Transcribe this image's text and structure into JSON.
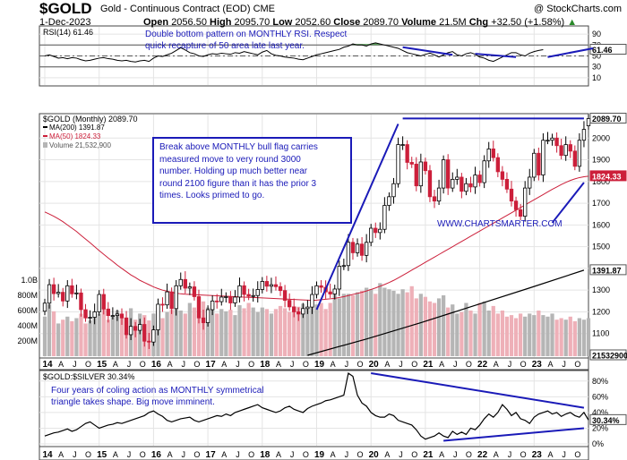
{
  "header": {
    "symbol": "$GOLD",
    "description": "Gold - Continuous Contract (EOD)",
    "exchange": "CME",
    "credit": "@ StockCharts.com",
    "date": "1-Dec-2023",
    "ohlc": {
      "open_label": "Open",
      "open": "2056.50",
      "high_label": "High",
      "high": "2095.70",
      "low_label": "Low",
      "low": "2052.60",
      "close_label": "Close",
      "close": "2089.70",
      "volume_label": "Volume",
      "volume": "21.5M",
      "chg_label": "Chg",
      "chg": "+32.50 (+1.58%)",
      "chg_arrow": "▲"
    }
  },
  "annotations": {
    "rsi_note": [
      "Double bottom pattern on MONTHLY RSI. Respect",
      "quick recapture of 50 area late last year."
    ],
    "price_note": [
      "Break above MONTHLY bull flag carries",
      "measured move to very round 3000",
      "number. Holding up much better near",
      "round 2100 figure than it has the prior 3",
      "times. Looks primed to go."
    ],
    "ratio_note": [
      "Four years of coling action as MONTHLY symmetrical",
      "triangle takes shape. Big move imminent."
    ],
    "watermark": "WWW.CHARTSMARTER.COM"
  },
  "colors": {
    "candle_up": "#000000",
    "candle_down": "#cc1f3a",
    "volume_up": "#b5b5b5",
    "volume_down": "#eeb0b8",
    "ma200": "#000000",
    "ma50": "#cc1f3a",
    "trendline": "#1a1ab8",
    "rsi_overbought_fill": "#3d8f3d",
    "grid": "#e4e4e4"
  },
  "chart_data": [
    {
      "type": "line",
      "panel": "rsi",
      "title": "RSI(14) 61.46",
      "series": [
        {
          "name": "RSI(14)",
          "start": "2014-01",
          "interval": "month",
          "values": [
            50,
            52,
            49,
            46,
            47,
            45,
            47,
            46,
            43,
            41,
            42,
            44,
            46,
            47,
            45,
            44,
            42,
            41,
            42,
            40,
            39,
            41,
            42,
            40,
            46,
            50,
            49,
            52,
            55,
            60,
            65,
            61,
            56,
            54,
            50,
            49,
            52,
            54,
            53,
            55,
            54,
            53,
            56,
            55,
            58,
            56,
            54,
            52,
            57,
            60,
            54,
            51,
            50,
            48,
            47,
            46,
            44,
            43,
            46,
            49,
            52,
            54,
            56,
            58,
            60,
            62,
            66,
            68,
            72,
            70,
            70,
            68,
            72,
            74,
            72,
            70,
            68,
            66,
            64,
            60,
            56,
            54,
            52,
            50,
            53,
            55,
            52,
            48,
            52,
            56,
            58,
            52,
            50,
            54,
            56,
            53,
            48,
            46,
            42,
            40,
            44,
            48,
            52,
            56,
            56,
            52,
            50,
            55,
            58,
            60,
            61.46
          ]
        }
      ],
      "ylim": [
        0,
        100
      ],
      "ticks": [
        90,
        70,
        50,
        30,
        10
      ],
      "reference_lines": [
        70,
        50,
        30
      ],
      "last_label": "61.46"
    },
    {
      "type": "candlestick",
      "panel": "price",
      "title": "$GOLD (Monthly) 2089.70",
      "legend": [
        "MA(200) 1391.87",
        "MA(50) 1824.33",
        "Volume 21,532,900"
      ],
      "start": "2014-01",
      "interval": "month",
      "close": [
        1240,
        1325,
        1284,
        1290,
        1250,
        1320,
        1283,
        1287,
        1210,
        1172,
        1175,
        1200,
        1280,
        1213,
        1183,
        1183,
        1190,
        1172,
        1095,
        1133,
        1115,
        1142,
        1065,
        1061,
        1117,
        1235,
        1232,
        1292,
        1215,
        1320,
        1349,
        1309,
        1315,
        1270,
        1172,
        1150,
        1210,
        1250,
        1247,
        1268,
        1270,
        1241,
        1268,
        1320,
        1280,
        1272,
        1275,
        1303,
        1340,
        1318,
        1325,
        1316,
        1298,
        1253,
        1223,
        1200,
        1190,
        1215,
        1222,
        1280,
        1320,
        1313,
        1292,
        1282,
        1305,
        1410,
        1413,
        1520,
        1472,
        1512,
        1460,
        1520,
        1585,
        1565,
        1580,
        1690,
        1730,
        1790,
        1970,
        1970,
        1888,
        1880,
        1780,
        1890,
        1850,
        1730,
        1710,
        1770,
        1900,
        1770,
        1810,
        1820,
        1755,
        1790,
        1775,
        1830,
        1795,
        1895,
        1950,
        1910,
        1845,
        1810,
        1765,
        1710,
        1670,
        1640,
        1770,
        1820,
        1930,
        1830,
        1990,
        1990,
        2000,
        1965,
        1920,
        1970,
        1940,
        1870,
        1990,
        2040,
        2089.7
      ],
      "open": [
        1203,
        1240,
        1325,
        1284,
        1290,
        1250,
        1320,
        1283,
        1287,
        1210,
        1172,
        1175,
        1200,
        1280,
        1213,
        1183,
        1183,
        1190,
        1172,
        1095,
        1133,
        1115,
        1142,
        1065,
        1061,
        1117,
        1235,
        1232,
        1292,
        1215,
        1320,
        1349,
        1309,
        1315,
        1270,
        1172,
        1150,
        1210,
        1250,
        1247,
        1268,
        1270,
        1241,
        1268,
        1320,
        1280,
        1272,
        1275,
        1303,
        1340,
        1318,
        1325,
        1316,
        1298,
        1253,
        1223,
        1200,
        1190,
        1215,
        1222,
        1280,
        1320,
        1313,
        1292,
        1282,
        1305,
        1410,
        1413,
        1520,
        1472,
        1512,
        1460,
        1520,
        1585,
        1565,
        1580,
        1690,
        1730,
        1790,
        1970,
        1970,
        1888,
        1880,
        1780,
        1890,
        1850,
        1730,
        1710,
        1770,
        1900,
        1770,
        1810,
        1820,
        1755,
        1790,
        1775,
        1830,
        1795,
        1895,
        1950,
        1910,
        1845,
        1810,
        1765,
        1710,
        1670,
        1640,
        1770,
        1820,
        1930,
        1830,
        1990,
        1990,
        2000,
        1965,
        1920,
        1970,
        1940,
        1870,
        1990,
        2056.5
      ],
      "ma50": [
        1660,
        1650,
        1640,
        1628,
        1615,
        1600,
        1585,
        1570,
        1552,
        1535,
        1518,
        1500,
        1482,
        1465,
        1448,
        1432,
        1415,
        1400,
        1385,
        1370,
        1358,
        1345,
        1335,
        1325,
        1315,
        1307,
        1300,
        1295,
        1290,
        1286,
        1283,
        1281,
        1280,
        1279,
        1278,
        1277,
        1276,
        1275,
        1274,
        1273,
        1272,
        1271,
        1270,
        1269,
        1268,
        1267,
        1266,
        1265,
        1264,
        1263,
        1262,
        1261,
        1260,
        1259,
        1258,
        1257,
        1256,
        1255,
        1254,
        1253,
        1254,
        1256,
        1258,
        1260,
        1262,
        1266,
        1270,
        1275,
        1280,
        1285,
        1290,
        1296,
        1303,
        1310,
        1318,
        1326,
        1335,
        1345,
        1356,
        1368,
        1380,
        1392,
        1404,
        1416,
        1428,
        1440,
        1452,
        1464,
        1476,
        1488,
        1500,
        1512,
        1524,
        1536,
        1548,
        1560,
        1572,
        1584,
        1596,
        1608,
        1620,
        1632,
        1644,
        1656,
        1668,
        1680,
        1692,
        1704,
        1716,
        1728,
        1740,
        1752,
        1764,
        1775,
        1786,
        1796,
        1805,
        1812,
        1818,
        1822,
        1824.33
      ],
      "ma200": [
        {
          "x": "2018-11",
          "y": 1000
        },
        {
          "x": "2019-12",
          "y": 1075
        },
        {
          "x": "2020-12",
          "y": 1150
        },
        {
          "x": "2021-12",
          "y": 1230
        },
        {
          "x": "2022-12",
          "y": 1310
        },
        {
          "x": "2023-12",
          "y": 1391.87
        }
      ],
      "volume_millions": [
        520,
        680,
        590,
        430,
        480,
        520,
        460,
        500,
        560,
        430,
        470,
        520,
        560,
        640,
        480,
        520,
        600,
        500,
        460,
        630,
        480,
        560,
        540,
        470,
        560,
        640,
        500,
        580,
        610,
        620,
        600,
        560,
        700,
        640,
        560,
        720,
        640,
        660,
        560,
        620,
        590,
        610,
        540,
        670,
        630,
        700,
        640,
        580,
        640,
        620,
        560,
        620,
        660,
        630,
        580,
        600,
        650,
        690,
        620,
        640,
        680,
        700,
        620,
        700,
        880,
        760,
        820,
        820,
        800,
        840,
        860,
        900,
        880,
        820,
        960,
        900,
        880,
        860,
        820,
        880,
        840,
        920,
        760,
        820,
        780,
        720,
        700,
        760,
        800,
        640,
        680,
        560,
        580,
        700,
        600,
        560,
        700,
        720,
        600,
        660,
        560,
        600,
        520,
        540,
        500,
        560,
        520,
        560,
        540,
        600,
        540,
        520,
        560,
        480,
        500,
        480,
        520,
        460,
        500,
        480,
        500
      ],
      "ylim": [
        1000,
        2100
      ],
      "price_ticks": [
        2000,
        1900,
        1800,
        1700,
        1600,
        1500,
        1400,
        1300,
        1200,
        1100
      ],
      "volume_ticks": [
        "1.0B",
        "800M",
        "600M",
        "400M",
        "200M"
      ],
      "last_labels": {
        "close": "2089.70",
        "ma50": "1824.33",
        "ma200": "1391.87",
        "volume": "21532900"
      }
    },
    {
      "type": "line",
      "panel": "ratio",
      "title": "$GOLD:$SILVER 30.34%",
      "series": [
        {
          "name": "$GOLD:$SILVER",
          "start": "2014-01",
          "interval": "month",
          "values": [
            10,
            12,
            14,
            15,
            17,
            19,
            16,
            18,
            22,
            26,
            28,
            24,
            20,
            22,
            24,
            25,
            27,
            26,
            28,
            30,
            32,
            34,
            36,
            40,
            42,
            38,
            35,
            30,
            28,
            30,
            32,
            33,
            34,
            30,
            28,
            30,
            32,
            34,
            36,
            35,
            38,
            36,
            40,
            42,
            44,
            46,
            48,
            50,
            46,
            44,
            42,
            40,
            42,
            46,
            48,
            44,
            42,
            40,
            45,
            48,
            50,
            52,
            55,
            56,
            58,
            60,
            62,
            90,
            86,
            62,
            52,
            48,
            40,
            36,
            34,
            34,
            38,
            36,
            30,
            28,
            26,
            24,
            18,
            10,
            6,
            8,
            10,
            14,
            10,
            8,
            16,
            12,
            15,
            12,
            20,
            18,
            24,
            32,
            38,
            34,
            40,
            50,
            44,
            36,
            40,
            32,
            30,
            26,
            34,
            38,
            40,
            42,
            38,
            40,
            35,
            38,
            40,
            36,
            34,
            40,
            30.34
          ]
        }
      ],
      "ylim": [
        0,
        90
      ],
      "ticks": [
        "80%",
        "60%",
        "40%",
        "20%",
        "0%"
      ],
      "last_label": "30.34%"
    }
  ],
  "xaxis": {
    "year_labels": [
      "14",
      "15",
      "16",
      "17",
      "18",
      "19",
      "20",
      "21",
      "22",
      "23"
    ],
    "month_letters": [
      "A",
      "J",
      "O"
    ]
  }
}
